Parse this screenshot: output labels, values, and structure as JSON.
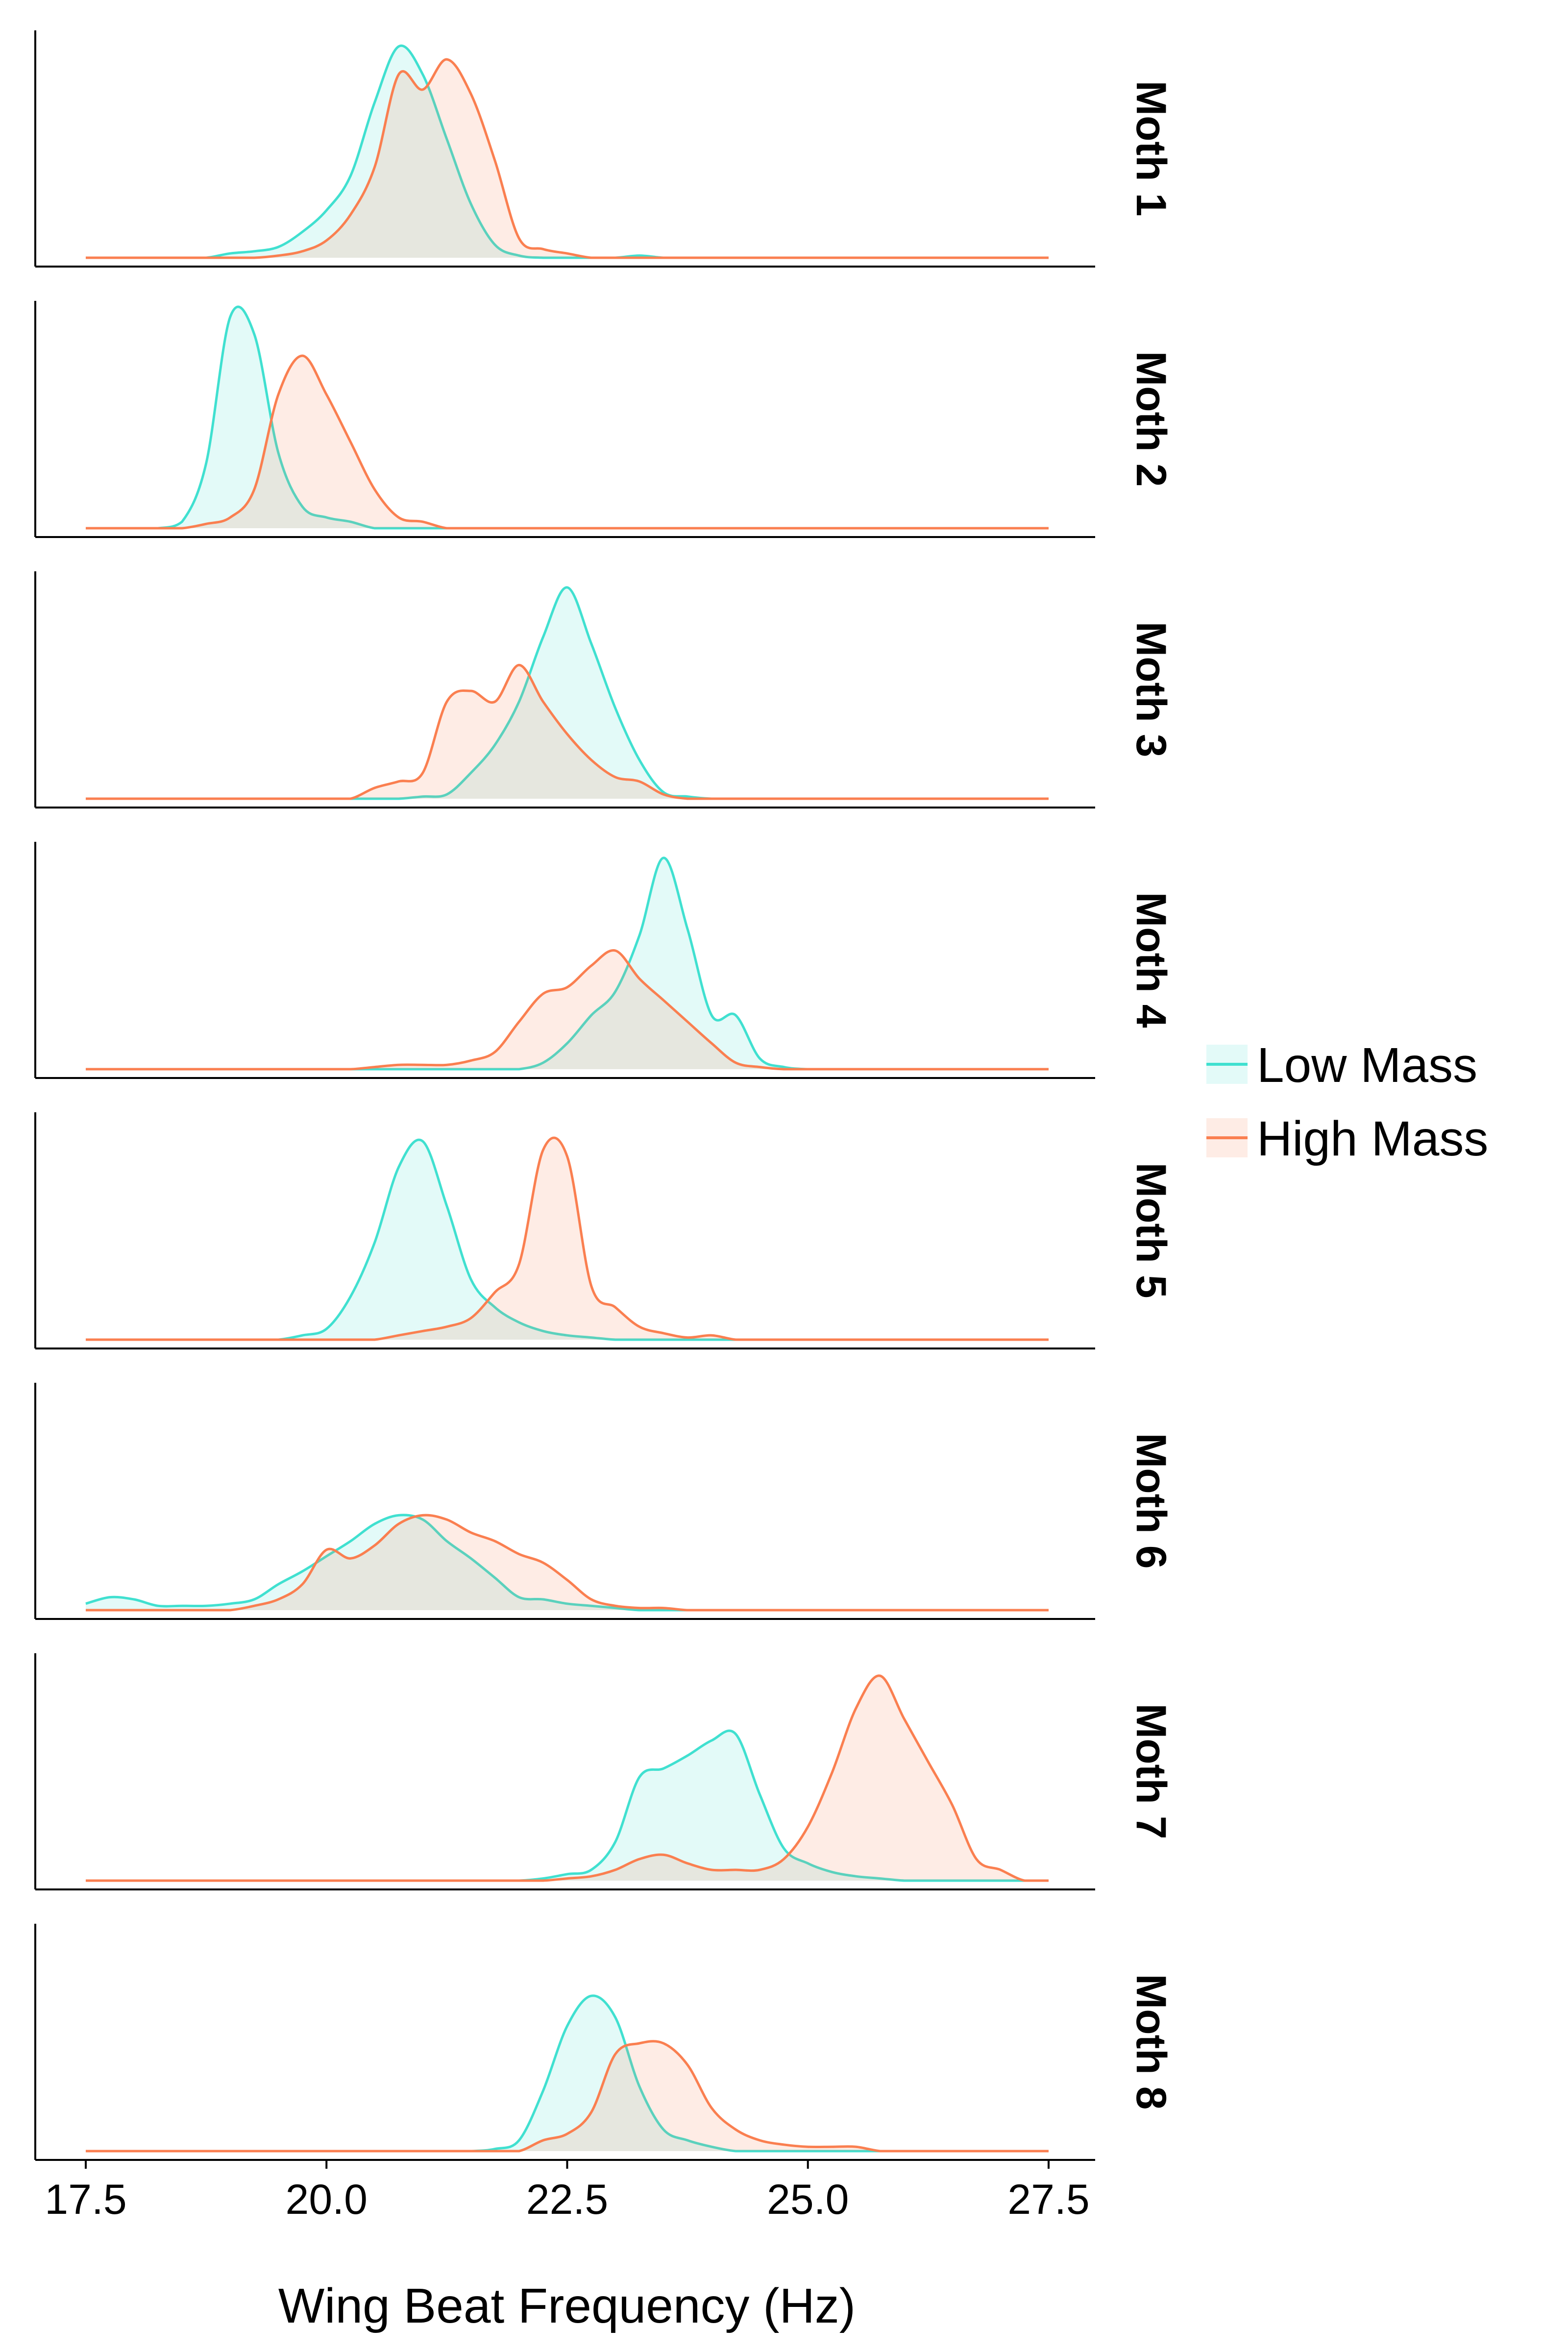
{
  "chart_data": {
    "type": "area",
    "subtype": "faceted density plot",
    "title": "",
    "xlabel": "Wing Beat Frequency (Hz)",
    "ylabel": "",
    "xlim": [
      17.5,
      27.5
    ],
    "x_ticks": [
      "17.5",
      "20.0",
      "22.5",
      "25.0",
      "27.5"
    ],
    "y_axis": "unlabeled, each panel scaled independently",
    "grid": false,
    "legend_position": "right",
    "colors": {
      "Low Mass": "#40E0D0",
      "High Mass": "#FA7F50",
      "overlap": "#E5E4DA"
    },
    "series_names": [
      "Low Mass",
      "High Mass"
    ],
    "x": [
      17.5,
      17.75,
      18,
      18.25,
      18.5,
      18.75,
      19,
      19.25,
      19.5,
      19.75,
      20,
      20.25,
      20.5,
      20.75,
      21,
      21.25,
      21.5,
      21.75,
      22,
      22.25,
      22.5,
      22.75,
      23,
      23.25,
      23.5,
      23.75,
      24,
      24.25,
      24.5,
      24.75,
      25,
      25.25,
      25.5,
      25.75,
      26,
      26.25,
      26.5,
      26.75,
      27,
      27.25,
      27.5
    ],
    "panels": [
      {
        "label": "Moth 1",
        "series": [
          {
            "name": "Low Mass",
            "values": [
              0,
              0,
              0,
              0,
              0,
              0,
              0.02,
              0.03,
              0.05,
              0.12,
              0.22,
              0.38,
              0.72,
              0.98,
              0.85,
              0.55,
              0.25,
              0.06,
              0.01,
              0,
              0,
              0,
              0,
              0.01,
              0,
              0,
              0,
              0,
              0,
              0,
              0,
              0,
              0,
              0,
              0,
              0,
              0,
              0,
              0,
              0,
              0
            ]
          },
          {
            "name": "High Mass",
            "values": [
              0,
              0,
              0,
              0,
              0,
              0,
              0,
              0,
              0.01,
              0.03,
              0.08,
              0.2,
              0.42,
              0.85,
              0.78,
              0.92,
              0.76,
              0.45,
              0.09,
              0.04,
              0.02,
              0,
              0,
              0,
              0,
              0,
              0,
              0,
              0,
              0,
              0,
              0,
              0,
              0,
              0,
              0,
              0,
              0,
              0,
              0,
              0
            ]
          }
        ]
      },
      {
        "label": "Moth 2",
        "series": [
          {
            "name": "Low Mass",
            "values": [
              0,
              0,
              0,
              0,
              0.03,
              0.3,
              0.98,
              0.9,
              0.35,
              0.1,
              0.05,
              0.03,
              0,
              0,
              0,
              0,
              0,
              0,
              0,
              0,
              0,
              0,
              0,
              0,
              0,
              0,
              0,
              0,
              0,
              0,
              0,
              0,
              0,
              0,
              0,
              0,
              0,
              0,
              0,
              0,
              0
            ]
          },
          {
            "name": "High Mass",
            "values": [
              0,
              0,
              0,
              0,
              0,
              0.02,
              0.05,
              0.18,
              0.62,
              0.8,
              0.62,
              0.4,
              0.18,
              0.05,
              0.03,
              0,
              0,
              0,
              0,
              0,
              0,
              0,
              0,
              0,
              0,
              0,
              0,
              0,
              0,
              0,
              0,
              0,
              0,
              0,
              0,
              0,
              0,
              0,
              0,
              0,
              0
            ]
          }
        ]
      },
      {
        "label": "Moth 3",
        "series": [
          {
            "name": "Low Mass",
            "values": [
              0,
              0,
              0,
              0,
              0,
              0,
              0,
              0,
              0,
              0,
              0,
              0,
              0,
              0,
              0.01,
              0.02,
              0.12,
              0.25,
              0.45,
              0.75,
              0.98,
              0.72,
              0.42,
              0.18,
              0.03,
              0.01,
              0,
              0,
              0,
              0,
              0,
              0,
              0,
              0,
              0,
              0,
              0,
              0,
              0,
              0,
              0
            ]
          },
          {
            "name": "High Mass",
            "values": [
              0,
              0,
              0,
              0,
              0,
              0,
              0,
              0,
              0,
              0,
              0,
              0,
              0.05,
              0.08,
              0.12,
              0.45,
              0.5,
              0.45,
              0.62,
              0.45,
              0.3,
              0.18,
              0.1,
              0.08,
              0.02,
              0,
              0,
              0,
              0,
              0,
              0,
              0,
              0,
              0,
              0,
              0,
              0,
              0,
              0,
              0,
              0
            ]
          }
        ]
      },
      {
        "label": "Moth 4",
        "series": [
          {
            "name": "Low Mass",
            "values": [
              0,
              0,
              0,
              0,
              0,
              0,
              0,
              0,
              0,
              0,
              0,
              0,
              0,
              0,
              0,
              0,
              0,
              0,
              0,
              0.03,
              0.12,
              0.25,
              0.36,
              0.62,
              0.98,
              0.65,
              0.25,
              0.25,
              0.05,
              0.01,
              0,
              0,
              0,
              0,
              0,
              0,
              0,
              0,
              0,
              0,
              0
            ]
          },
          {
            "name": "High Mass",
            "values": [
              0,
              0,
              0,
              0,
              0,
              0,
              0,
              0,
              0,
              0,
              0,
              0,
              0.01,
              0.02,
              0.02,
              0.02,
              0.04,
              0.08,
              0.22,
              0.35,
              0.38,
              0.48,
              0.55,
              0.42,
              0.32,
              0.22,
              0.12,
              0.03,
              0.01,
              0,
              0,
              0,
              0,
              0,
              0,
              0,
              0,
              0,
              0,
              0,
              0
            ]
          }
        ]
      },
      {
        "label": "Moth 5",
        "series": [
          {
            "name": "Low Mass",
            "values": [
              0,
              0,
              0,
              0,
              0,
              0,
              0,
              0,
              0,
              0.02,
              0.05,
              0.2,
              0.45,
              0.8,
              0.92,
              0.62,
              0.28,
              0.15,
              0.08,
              0.04,
              0.02,
              0.01,
              0,
              0,
              0,
              0,
              0,
              0,
              0,
              0,
              0,
              0,
              0,
              0,
              0,
              0,
              0,
              0,
              0,
              0,
              0
            ]
          },
          {
            "name": "High Mass",
            "values": [
              0,
              0,
              0,
              0,
              0,
              0,
              0,
              0,
              0,
              0,
              0,
              0,
              0,
              0.02,
              0.04,
              0.06,
              0.1,
              0.22,
              0.35,
              0.88,
              0.85,
              0.25,
              0.15,
              0.06,
              0.03,
              0.01,
              0.02,
              0,
              0,
              0,
              0,
              0,
              0,
              0,
              0,
              0,
              0,
              0,
              0,
              0,
              0
            ]
          }
        ]
      },
      {
        "label": "Moth 6",
        "series": [
          {
            "name": "Low Mass",
            "values": [
              0.03,
              0.06,
              0.05,
              0.02,
              0.02,
              0.02,
              0.03,
              0.05,
              0.12,
              0.18,
              0.25,
              0.32,
              0.4,
              0.44,
              0.42,
              0.32,
              0.24,
              0.15,
              0.06,
              0.05,
              0.03,
              0.02,
              0.01,
              0,
              0,
              0,
              0,
              0,
              0,
              0,
              0,
              0,
              0,
              0,
              0,
              0,
              0,
              0,
              0,
              0,
              0
            ]
          },
          {
            "name": "High Mass",
            "values": [
              0,
              0,
              0,
              0,
              0,
              0,
              0,
              0.02,
              0.05,
              0.12,
              0.28,
              0.24,
              0.3,
              0.4,
              0.44,
              0.42,
              0.36,
              0.32,
              0.26,
              0.22,
              0.14,
              0.05,
              0.02,
              0.01,
              0.01,
              0,
              0,
              0,
              0,
              0,
              0,
              0,
              0,
              0,
              0,
              0,
              0,
              0,
              0,
              0,
              0
            ]
          }
        ]
      },
      {
        "label": "Moth 7",
        "series": [
          {
            "name": "Low Mass",
            "values": [
              0,
              0,
              0,
              0,
              0,
              0,
              0,
              0,
              0,
              0,
              0,
              0,
              0,
              0,
              0,
              0,
              0,
              0,
              0,
              0.01,
              0.03,
              0.05,
              0.18,
              0.48,
              0.52,
              0.58,
              0.65,
              0.68,
              0.4,
              0.15,
              0.08,
              0.04,
              0.02,
              0.01,
              0,
              0,
              0,
              0,
              0,
              0,
              0
            ]
          },
          {
            "name": "High Mass",
            "values": [
              0,
              0,
              0,
              0,
              0,
              0,
              0,
              0,
              0,
              0,
              0,
              0,
              0,
              0,
              0,
              0,
              0,
              0,
              0,
              0,
              0.01,
              0.02,
              0.05,
              0.1,
              0.12,
              0.08,
              0.05,
              0.05,
              0.05,
              0.1,
              0.25,
              0.5,
              0.8,
              0.95,
              0.75,
              0.55,
              0.35,
              0.1,
              0.05,
              0,
              0
            ]
          }
        ]
      },
      {
        "label": "Moth 8",
        "series": [
          {
            "name": "Low Mass",
            "values": [
              0,
              0,
              0,
              0,
              0,
              0,
              0,
              0,
              0,
              0,
              0,
              0,
              0,
              0,
              0,
              0,
              0,
              0.01,
              0.05,
              0.28,
              0.58,
              0.72,
              0.62,
              0.3,
              0.1,
              0.05,
              0.02,
              0,
              0,
              0,
              0,
              0,
              0,
              0,
              0,
              0,
              0,
              0,
              0,
              0,
              0
            ]
          },
          {
            "name": "High Mass",
            "values": [
              0,
              0,
              0,
              0,
              0,
              0,
              0,
              0,
              0,
              0,
              0,
              0,
              0,
              0,
              0,
              0,
              0,
              0,
              0,
              0.05,
              0.08,
              0.18,
              0.45,
              0.5,
              0.5,
              0.4,
              0.2,
              0.1,
              0.05,
              0.03,
              0.02,
              0.02,
              0.02,
              0,
              0,
              0,
              0,
              0,
              0,
              0,
              0
            ]
          }
        ]
      }
    ]
  }
}
